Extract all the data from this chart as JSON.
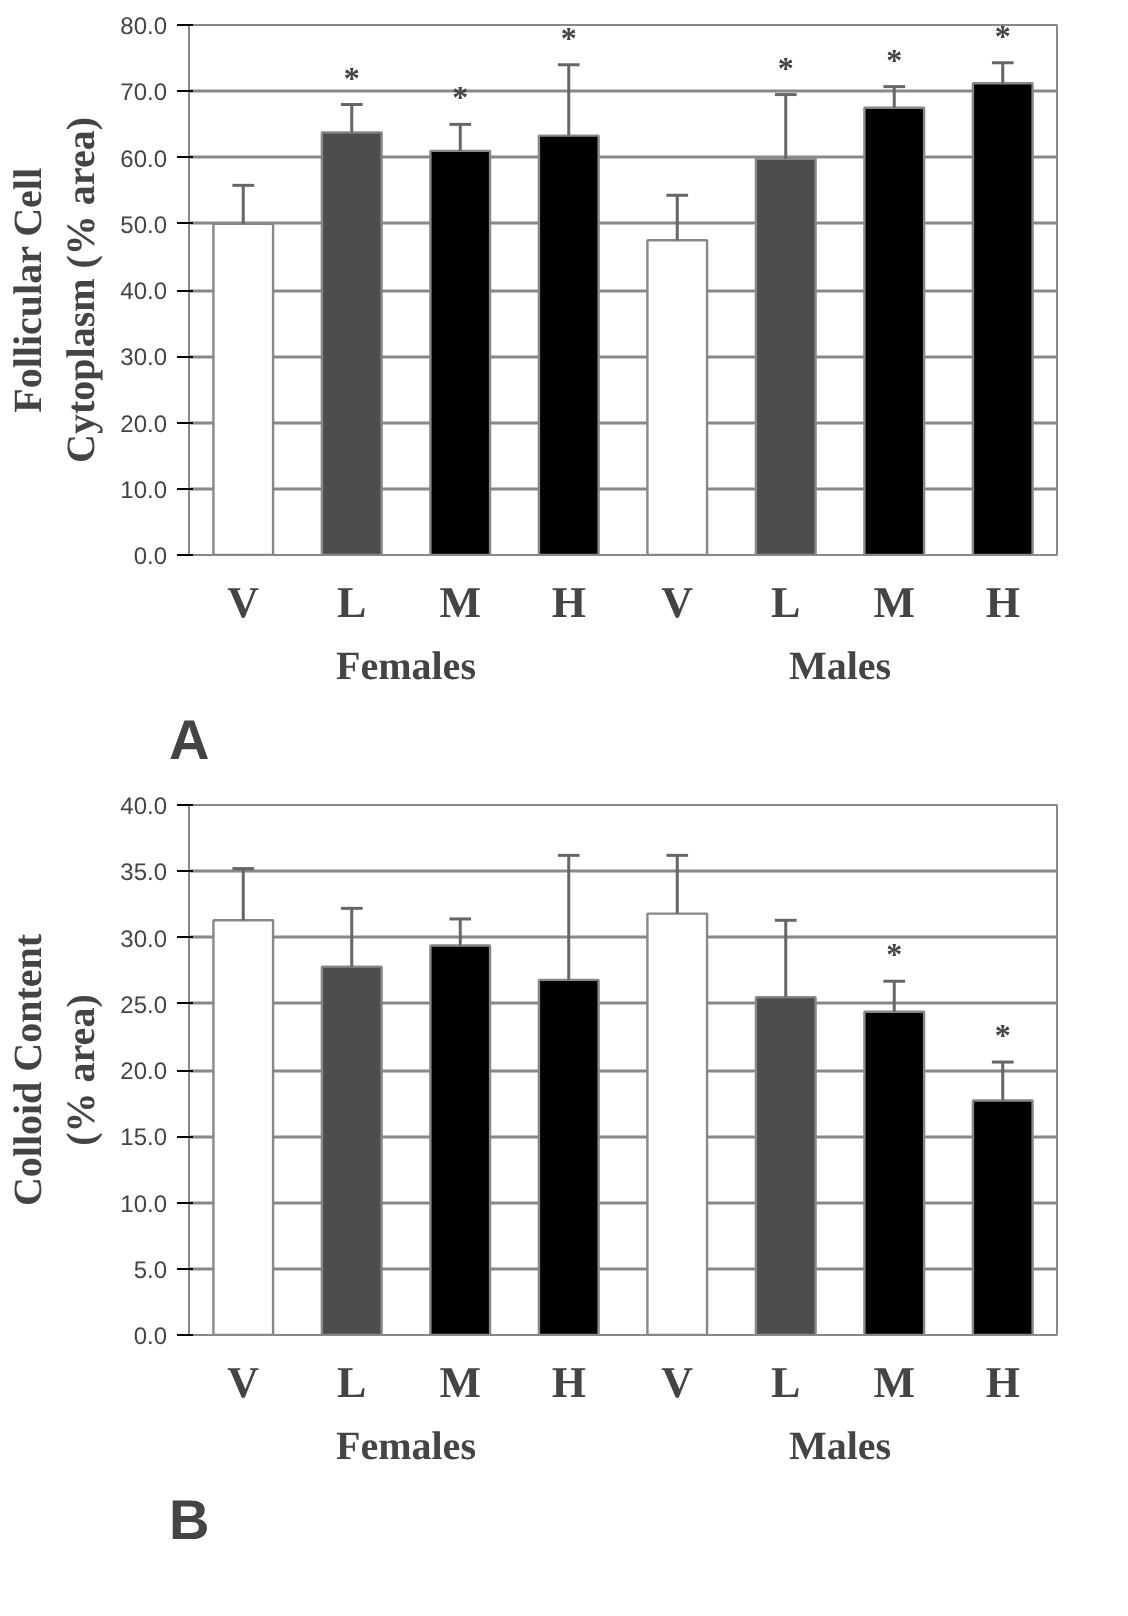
{
  "chart_data": [
    {
      "type": "bar",
      "ylabel": "Follicular Cell\nCytoplasm (% area)",
      "categories": [
        "V",
        "L",
        "M",
        "H",
        "V",
        "L",
        "M",
        "H"
      ],
      "values": [
        50.0,
        63.8,
        61.0,
        63.3,
        47.5,
        59.8,
        67.5,
        71.2
      ],
      "colors": [
        "#ffffff",
        "#4d4d4d",
        "#000000",
        "#000000",
        "#ffffff",
        "#4d4d4d",
        "#000000",
        "#000000"
      ],
      "errors": [
        [
          50.0,
          55.8
        ],
        [
          63.8,
          68.0
        ],
        [
          61.0,
          65.0
        ],
        [
          63.3,
          74.0
        ],
        [
          47.5,
          54.3
        ],
        [
          59.8,
          69.5
        ],
        [
          67.5,
          70.7
        ],
        [
          71.2,
          74.3
        ]
      ],
      "value_labels": [
        null,
        "*",
        "*",
        "*",
        null,
        "*",
        "*",
        "*"
      ],
      "ylim": [
        0,
        80
      ],
      "yticks": [
        {
          "value": 0,
          "label": "0.0"
        },
        {
          "value": 10,
          "label": "10.0"
        },
        {
          "value": 20,
          "label": "20.0"
        },
        {
          "value": 30,
          "label": "30.0"
        },
        {
          "value": 40,
          "label": "40.0"
        },
        {
          "value": 50,
          "label": "50.0"
        },
        {
          "value": 60,
          "label": "60.0"
        },
        {
          "value": 70,
          "label": "70.0"
        },
        {
          "value": 80,
          "label": "80.0"
        }
      ],
      "grid": "y",
      "annotations": [
        "A",
        "Females",
        "Males"
      ]
    },
    {
      "type": "bar",
      "ylabel": "Colloid Content\n(% area)",
      "categories": [
        "V",
        "L",
        "M",
        "H",
        "V",
        "L",
        "M",
        "H"
      ],
      "values": [
        31.3,
        27.8,
        29.4,
        26.8,
        31.8,
        25.5,
        24.4,
        17.7
      ],
      "colors": [
        "#ffffff",
        "#4d4d4d",
        "#000000",
        "#000000",
        "#ffffff",
        "#4d4d4d",
        "#000000",
        "#000000"
      ],
      "errors": [
        [
          31.3,
          35.2
        ],
        [
          27.8,
          32.2
        ],
        [
          29.4,
          31.4
        ],
        [
          26.8,
          36.2
        ],
        [
          31.8,
          36.2
        ],
        [
          25.5,
          31.3
        ],
        [
          24.4,
          26.7
        ],
        [
          17.7,
          20.6
        ]
      ],
      "value_labels": [
        null,
        null,
        null,
        null,
        null,
        null,
        "*",
        "*"
      ],
      "ylim": [
        0,
        40
      ],
      "yticks": [
        {
          "value": 0,
          "label": "0.0"
        },
        {
          "value": 5,
          "label": "5.0"
        },
        {
          "value": 10,
          "label": "10.0"
        },
        {
          "value": 15,
          "label": "15.0"
        },
        {
          "value": 20,
          "label": "20.0"
        },
        {
          "value": 25,
          "label": "25.0"
        },
        {
          "value": 30,
          "label": "30.0"
        },
        {
          "value": 35,
          "label": "35.0"
        },
        {
          "value": 40,
          "label": "40.0"
        }
      ],
      "grid": "y",
      "annotations": [
        "B",
        "Females",
        "Males"
      ]
    }
  ]
}
